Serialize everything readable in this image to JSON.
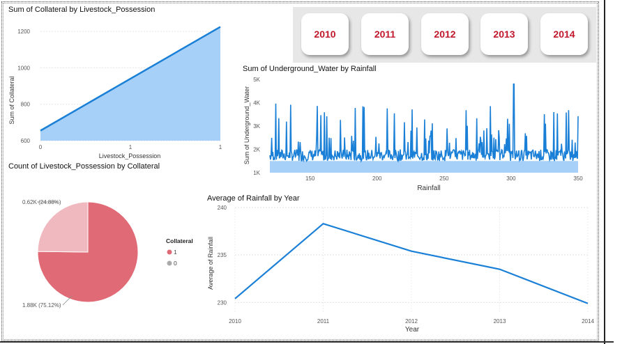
{
  "area_chart": {
    "title": "Sum of Collateral by Livestock_Possession",
    "xlabel": "Livestock_Possession",
    "ylabel": "Sum of Collateral",
    "yticks": [
      "600",
      "800",
      "1000",
      "1200"
    ],
    "xticks": [
      "0",
      "1",
      "1"
    ]
  },
  "years": [
    "2010",
    "2011",
    "2012",
    "2013",
    "2014"
  ],
  "uw_chart": {
    "title": "Sum of Underground_Water by Rainfall",
    "xlabel": "Rainfall",
    "ylabel": "Sum of Underground_Water",
    "yticks": [
      "1K",
      "2K",
      "3K",
      "4K",
      "5K"
    ],
    "xticks": [
      "150",
      "200",
      "250",
      "300",
      "350"
    ]
  },
  "pie_chart": {
    "title": "Count of Livestock_Possession by Collateral",
    "label_small": "0.62K (24.88%)",
    "label_large": "1.88K (75.12%)",
    "legend_title": "Collateral",
    "legend_items": [
      "1",
      "0"
    ]
  },
  "rain_chart": {
    "title": "Average of Rainfall by Year",
    "xlabel": "Year",
    "ylabel": "Average of Rainfall",
    "yticks": [
      "230",
      "235",
      "240"
    ],
    "xticks": [
      "2010",
      "2011",
      "2012",
      "2013",
      "2014"
    ]
  },
  "colors": {
    "blue": "#1a7fd6",
    "area_fill": "#a6d0f7",
    "pie_1": "#e06b76",
    "pie_0": "#f0b9bf",
    "year_text": "#c0172b"
  },
  "chart_data": [
    {
      "type": "area",
      "title": "Sum of Collateral by Livestock_Possession",
      "x": [
        0,
        1
      ],
      "values": [
        655,
        1225
      ],
      "ylim": [
        600,
        1250
      ],
      "xlabel": "Livestock_Possession",
      "ylabel": "Sum of Collateral"
    },
    {
      "type": "line",
      "title": "Sum of Underground_Water by Rainfall",
      "xlim": [
        120,
        350
      ],
      "ylim": [
        1000,
        5000
      ],
      "xlabel": "Rainfall",
      "ylabel": "Sum of Underground_Water",
      "baseline_range": [
        1500,
        2000
      ],
      "spike_max": 4800
    },
    {
      "type": "pie",
      "title": "Count of Livestock_Possession by Collateral",
      "categories": [
        "1",
        "0"
      ],
      "values": [
        1880,
        620
      ],
      "percents": [
        75.12,
        24.88
      ]
    },
    {
      "type": "line",
      "title": "Average of Rainfall by Year",
      "categories": [
        "2010",
        "2011",
        "2012",
        "2013",
        "2014"
      ],
      "values": [
        230.4,
        238.3,
        235.4,
        233.5,
        229.9
      ],
      "ylim": [
        229,
        240
      ],
      "xlabel": "Year",
      "ylabel": "Average of Rainfall"
    }
  ]
}
